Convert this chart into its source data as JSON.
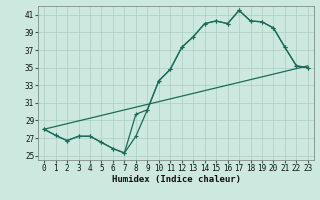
{
  "xlabel": "Humidex (Indice chaleur)",
  "bg_color": "#cce8df",
  "grid_color": "#aacfc5",
  "line_color": "#1a6b5a",
  "xlim": [
    -0.5,
    23.5
  ],
  "ylim": [
    24.5,
    42
  ],
  "yticks": [
    25,
    27,
    29,
    31,
    33,
    35,
    37,
    39,
    41
  ],
  "xticks": [
    0,
    1,
    2,
    3,
    4,
    5,
    6,
    7,
    8,
    9,
    10,
    11,
    12,
    13,
    14,
    15,
    16,
    17,
    18,
    19,
    20,
    21,
    22,
    23
  ],
  "line1_x": [
    0,
    1,
    2,
    3,
    4,
    5,
    6,
    7,
    8,
    9,
    10,
    11,
    12,
    13,
    14,
    15,
    16,
    17,
    18,
    19,
    20,
    21,
    22,
    23
  ],
  "line1_y": [
    28.0,
    27.3,
    26.7,
    27.2,
    27.2,
    26.5,
    25.8,
    25.3,
    27.2,
    30.2,
    33.5,
    34.8,
    37.3,
    38.5,
    40.0,
    40.3,
    40.0,
    41.5,
    40.3,
    40.2,
    39.5,
    37.3,
    35.2,
    35.0
  ],
  "line2_x": [
    0,
    1,
    2,
    3,
    4,
    5,
    6,
    7,
    8,
    9,
    10,
    11,
    12,
    13,
    14,
    15,
    16,
    17,
    18,
    19,
    20,
    21,
    22,
    23
  ],
  "line2_y": [
    28.0,
    27.3,
    26.7,
    27.2,
    27.2,
    26.5,
    25.8,
    25.3,
    29.7,
    30.2,
    33.5,
    34.8,
    37.3,
    38.5,
    40.0,
    40.3,
    40.0,
    41.5,
    40.3,
    40.2,
    39.5,
    37.3,
    35.2,
    35.0
  ],
  "line3_x": [
    0,
    23
  ],
  "line3_y": [
    28.0,
    35.2
  ],
  "marker_size": 2.5,
  "linewidth": 0.9,
  "font_size_tick": 5.5,
  "font_size_label": 6.5
}
